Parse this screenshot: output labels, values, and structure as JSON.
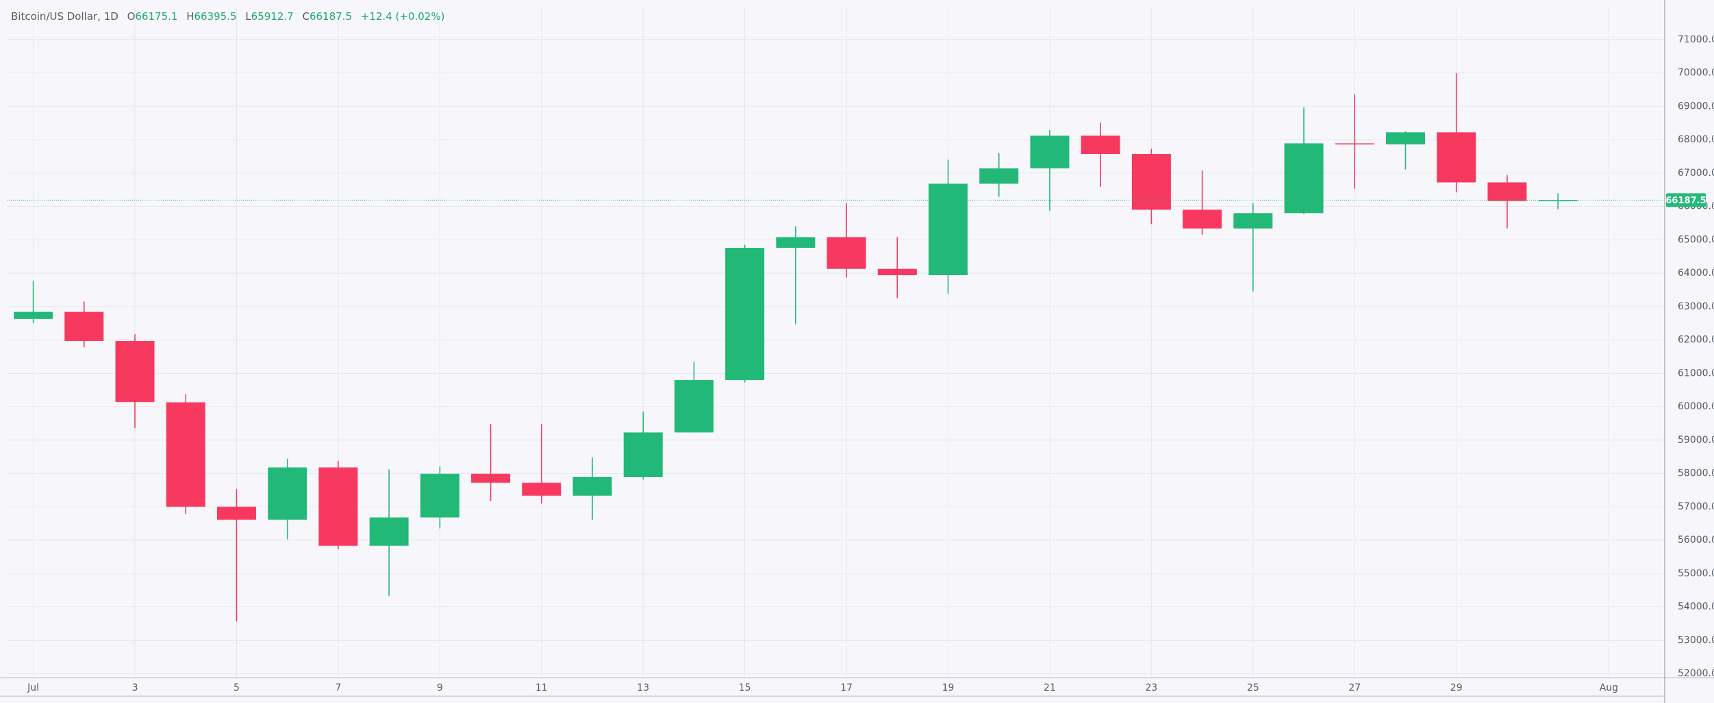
{
  "header": {
    "title": "Bitcoin/US Dollar, 1D",
    "items": [
      {
        "label": "O",
        "value": "66175.1"
      },
      {
        "label": "H",
        "value": "66395.5"
      },
      {
        "label": "L",
        "value": "65912.7"
      },
      {
        "label": "C",
        "value": "66187.5"
      }
    ],
    "change": "+12.4 (+0.02%)"
  },
  "chart_data": {
    "type": "candlestick",
    "x": [
      1,
      2,
      3,
      4,
      5,
      6,
      7,
      8,
      9,
      10,
      11,
      12,
      13,
      14,
      15,
      16,
      17,
      18,
      19,
      20,
      21,
      22,
      23,
      24,
      25,
      26,
      27,
      28,
      29,
      30,
      31
    ],
    "open": [
      62630,
      62840,
      61970,
      60130,
      57000,
      56610,
      58180,
      55830,
      56680,
      57990,
      57720,
      57330,
      57890,
      59230,
      60800,
      64760,
      65080,
      64130,
      63940,
      66680,
      67140,
      68120,
      67570,
      65900,
      65340,
      65800,
      67890,
      67860,
      68220,
      66720,
      66175.1
    ],
    "high": [
      63770,
      63150,
      62170,
      60370,
      57530,
      58440,
      58380,
      58120,
      58210,
      59490,
      59490,
      58480,
      59850,
      61350,
      64850,
      65410,
      66100,
      65080,
      67400,
      67600,
      68290,
      68510,
      67730,
      67080,
      66100,
      68970,
      69360,
      68250,
      69990,
      66940,
      66395.5
    ],
    "low": [
      62500,
      61780,
      59360,
      56780,
      53570,
      56020,
      55730,
      54320,
      56350,
      57170,
      57100,
      56610,
      57820,
      59230,
      60730,
      62470,
      63870,
      63250,
      63380,
      66290,
      65870,
      66590,
      65470,
      65150,
      63450,
      65770,
      66530,
      67110,
      66420,
      65340,
      65912.7
    ],
    "close": [
      62840,
      61970,
      60140,
      57000,
      56610,
      58180,
      55830,
      56680,
      57990,
      57720,
      57330,
      57890,
      59230,
      60800,
      64760,
      65080,
      64130,
      63940,
      66680,
      67140,
      68120,
      67570,
      65900,
      65340,
      65800,
      67890,
      67860,
      68220,
      66720,
      66160,
      66187.5
    ],
    "up_color": "#22b978",
    "down_color": "#f7395f",
    "xlim": [
      0.48,
      33.1
    ],
    "xticks": [
      {
        "value": 1,
        "label": "Jul"
      },
      3,
      5,
      7,
      9,
      11,
      13,
      15,
      17,
      19,
      21,
      23,
      25,
      27,
      29,
      {
        "value": 32,
        "label": "Aug"
      }
    ],
    "ylim": [
      51880,
      71980
    ],
    "yticks": [
      {
        "value": 52000,
        "label": "52000.0"
      },
      {
        "value": 53000,
        "label": "53000.0"
      },
      {
        "value": 54000,
        "label": "54000.0"
      },
      {
        "value": 55000,
        "label": "55000.0"
      },
      {
        "value": 56000,
        "label": "56000.0"
      },
      {
        "value": 57000,
        "label": "57000.0"
      },
      {
        "value": 58000,
        "label": "58000.0"
      },
      {
        "value": 59000,
        "label": "59000.0"
      },
      {
        "value": 60000,
        "label": "60000.0"
      },
      {
        "value": 61000,
        "label": "61000.0"
      },
      {
        "value": 62000,
        "label": "62000.0"
      },
      {
        "value": 63000,
        "label": "63000.0"
      },
      {
        "value": 64000,
        "label": "64000.0"
      },
      {
        "value": 65000,
        "label": "65000.0"
      },
      {
        "value": 66000,
        "label": "66000.0"
      },
      {
        "value": 67000,
        "label": "67000.0"
      },
      {
        "value": 68000,
        "label": "68000.0"
      },
      {
        "value": 69000,
        "label": "69000.0"
      },
      {
        "value": 70000,
        "label": "70000.0"
      },
      {
        "value": 71000,
        "label": "71000.0"
      }
    ],
    "last_price": 66187.5,
    "grid": true
  }
}
